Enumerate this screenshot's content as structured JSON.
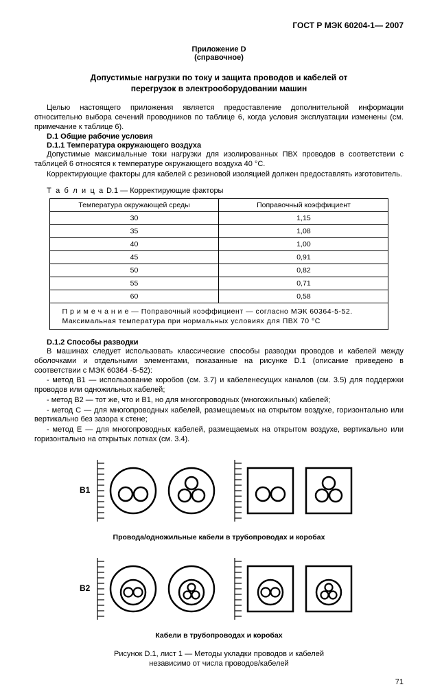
{
  "doc_header": "ГОСТ Р МЭК 60204-1— 2007",
  "annex_label": "Приложение D",
  "annex_type": "(справочное)",
  "main_title_l1": "Допустимые нагрузки по току и защита проводов и кабелей от",
  "main_title_l2": "перегрузок в электрооборудовании машин",
  "p_intro": "Целью настоящего приложения является предоставление дополнительной информации относительно выбора сечений проводников по таблице 6, когда условия эксплуатации изменены (см. примечание к таблице 6).",
  "h_d1": "D.1 Общие рабочие условия",
  "h_d11": "D.1.1 Температура окружающего воздуха",
  "p_d11_1": "Допустимые максимальные токи нагрузки для изолированных ПВХ проводов в соответствии с таблицей 6 относятся к температуре окружающего воздуха 40 °C.",
  "p_d11_2": "Корректирующие факторы для кабелей с резиновой изоляцией должен предоставлять изготовитель.",
  "table_label_spaced": "Т а б л и ц а",
  "table_label_rest": " D.1 — Корректирующие факторы",
  "table": {
    "col1_header": "Температура окружающей среды",
    "col2_header": "Поправочный коэффициент",
    "rows": [
      {
        "t": "30",
        "k": "1,15"
      },
      {
        "t": "35",
        "k": "1,08"
      },
      {
        "t": "40",
        "k": "1,00"
      },
      {
        "t": "45",
        "k": "0,91"
      },
      {
        "t": "50",
        "k": "0,82"
      },
      {
        "t": "55",
        "k": "0,71"
      },
      {
        "t": "60",
        "k": "0,58"
      }
    ],
    "note_l1": "П р и м е ч а н и е — Поправочный коэффициент — согласно МЭК 60364-5-52.",
    "note_l2": "Максимальная температура при нормальных условиях для ПВХ 70 °C"
  },
  "h_d12": "D.1.2 Способы разводки",
  "p_d12_1": "В машинах следует использовать классические способы разводки проводов и кабелей между оболочками и отдельными элементами, показанные на рисунке D.1 (описание приведено в соответствии с МЭК 60364 -5-52):",
  "li_b1": "- метод В1 — использование коробов  (см. 3.7) и кабеленесущих каналов (см. 3.5) для поддержки проводов или одножильных кабелей;",
  "li_b2": "- метод В2 — тот же, что и В1, но для многопроводных (многожильных) кабелей;",
  "li_c": "- метод С — для многопроводных кабелей, размещаемых на открытом воздухе, горизонтально или вертикально без зазора к стене;",
  "li_e": "- метод Е — для многопроводных кабелей, размещаемых на открытом воздухе, вертикально или горизонтально  на открытых лотках (см. 3.4).",
  "diagram": {
    "row1_label": "В1",
    "row2_label": "В2",
    "caption_row1": "Провода/одножильные кабели в трубопроводах и коробах",
    "caption_row2": "Кабели в трубопроводах и коробах",
    "stroke": "#000000",
    "fill": "#ffffff"
  },
  "fig_caption_l1": "Рисунок D.1, лист 1 — Методы укладки проводов и кабелей",
  "fig_caption_l2": "независимо от числа проводов/кабелей",
  "page_number": "71"
}
